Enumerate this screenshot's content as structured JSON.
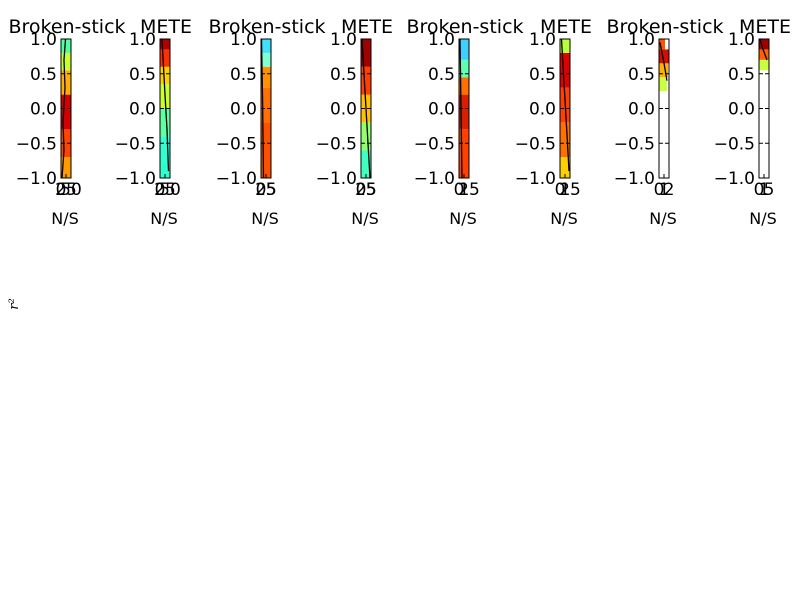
{
  "figure": {
    "ylabel": "r²"
  },
  "chart_data": [
    {
      "type": "heatmap",
      "title": "Broken-stick",
      "xlabel": "N/S",
      "ylim": [
        -1.0,
        1.0
      ],
      "yticks": [
        "1.0",
        "0.5",
        "0.0",
        "−0.5",
        "−1.0"
      ],
      "xticks": [
        "0",
        "25",
        "50"
      ],
      "bands": [
        {
          "y0": -1.0,
          "y1": -0.7,
          "color": "#ff9a00"
        },
        {
          "y0": -0.7,
          "y1": -0.3,
          "color": "#ff4400"
        },
        {
          "y0": -0.3,
          "y1": 0.2,
          "color": "#d40000"
        },
        {
          "y0": 0.2,
          "y1": 0.55,
          "color": "#ffb000"
        },
        {
          "y0": 0.55,
          "y1": 0.8,
          "color": "#c8ff30"
        },
        {
          "y0": 0.8,
          "y1": 1.0,
          "color": "#50ffa0"
        }
      ],
      "trace": [
        [
          0.1,
          -1.0
        ],
        [
          0.3,
          -0.6
        ],
        [
          0.2,
          -0.2
        ],
        [
          0.4,
          0.3
        ],
        [
          0.3,
          0.7
        ],
        [
          0.45,
          1.0
        ]
      ]
    },
    {
      "type": "heatmap",
      "title": "METE",
      "xlabel": "N/S",
      "ylim": [
        -1.0,
        1.0
      ],
      "yticks": [
        "1.0",
        "0.5",
        "0.0",
        "−0.5",
        "−1.0"
      ],
      "xticks": [
        "0",
        "25",
        "50"
      ],
      "bands": [
        {
          "y0": -1.0,
          "y1": -0.4,
          "color": "#30ffd0"
        },
        {
          "y0": -0.4,
          "y1": 0.0,
          "color": "#60ffa0"
        },
        {
          "y0": 0.0,
          "y1": 0.35,
          "color": "#c8ff30"
        },
        {
          "y0": 0.35,
          "y1": 0.6,
          "color": "#ffd000"
        },
        {
          "y0": 0.6,
          "y1": 0.85,
          "color": "#ff3000"
        },
        {
          "y0": 0.85,
          "y1": 1.0,
          "color": "#b00000"
        }
      ],
      "trace": [
        [
          0.2,
          1.0
        ],
        [
          0.35,
          0.6
        ],
        [
          0.5,
          0.2
        ],
        [
          0.7,
          -0.3
        ],
        [
          0.85,
          -0.9
        ]
      ]
    },
    {
      "type": "heatmap",
      "title": "Broken-stick",
      "xlabel": "N/S",
      "ylim": [
        -1.0,
        1.0
      ],
      "yticks": [
        "1.0",
        "0.5",
        "0.0",
        "−0.5",
        "−1.0"
      ],
      "xticks": [
        "0",
        "25",
        "5"
      ],
      "bands": [
        {
          "y0": -1.0,
          "y1": -0.2,
          "color": "#ff5000"
        },
        {
          "y0": -0.2,
          "y1": 0.3,
          "color": "#ff7000"
        },
        {
          "y0": 0.3,
          "y1": 0.6,
          "color": "#ff9000"
        },
        {
          "y0": 0.6,
          "y1": 0.8,
          "color": "#80ffd0"
        },
        {
          "y0": 0.8,
          "y1": 1.0,
          "color": "#40e0ff"
        }
      ],
      "trace": [
        [
          0.05,
          1.0
        ],
        [
          0.1,
          0.6
        ],
        [
          0.15,
          0.2
        ],
        [
          0.2,
          -0.4
        ],
        [
          0.25,
          -1.0
        ]
      ]
    },
    {
      "type": "heatmap",
      "title": "METE",
      "xlabel": "N/S",
      "ylim": [
        -1.0,
        1.0
      ],
      "yticks": [
        "1.0",
        "0.5",
        "0.0",
        "−0.5",
        "−1.0"
      ],
      "xticks": [
        "0",
        "25",
        "5"
      ],
      "bands": [
        {
          "y0": -1.0,
          "y1": -0.6,
          "color": "#40ffc0"
        },
        {
          "y0": -0.6,
          "y1": -0.2,
          "color": "#90ff70"
        },
        {
          "y0": -0.2,
          "y1": 0.2,
          "color": "#ffc000"
        },
        {
          "y0": 0.2,
          "y1": 0.6,
          "color": "#ff4000"
        },
        {
          "y0": 0.6,
          "y1": 1.0,
          "color": "#a00000"
        }
      ],
      "trace": [
        [
          0.1,
          1.0
        ],
        [
          0.3,
          0.5
        ],
        [
          0.5,
          0.0
        ],
        [
          0.7,
          -0.5
        ],
        [
          0.9,
          -1.0
        ]
      ]
    },
    {
      "type": "heatmap",
      "title": "Broken-stick",
      "xlabel": "N/S",
      "ylim": [
        -1.0,
        1.0
      ],
      "yticks": [
        "1.0",
        "0.5",
        "0.0",
        "−0.5",
        "−1.0"
      ],
      "xticks": [
        "0",
        "1",
        "25"
      ],
      "bands": [
        {
          "y0": -1.0,
          "y1": -0.3,
          "color": "#ff4000"
        },
        {
          "y0": -0.3,
          "y1": 0.2,
          "color": "#d82000"
        },
        {
          "y0": 0.2,
          "y1": 0.45,
          "color": "#ff7000"
        },
        {
          "y0": 0.45,
          "y1": 0.7,
          "color": "#60ffb0"
        },
        {
          "y0": 0.7,
          "y1": 1.0,
          "color": "#40d0ff"
        }
      ],
      "trace": [
        [
          0.1,
          1.0
        ],
        [
          0.15,
          0.5
        ],
        [
          0.2,
          0.0
        ],
        [
          0.25,
          -0.5
        ],
        [
          0.3,
          -1.0
        ]
      ]
    },
    {
      "type": "heatmap",
      "title": "METE",
      "xlabel": "N/S",
      "ylim": [
        -1.0,
        1.0
      ],
      "yticks": [
        "1.0",
        "0.5",
        "0.0",
        "−0.5",
        "−1.0"
      ],
      "xticks": [
        "0",
        "1",
        "25"
      ],
      "bands": [
        {
          "y0": -1.0,
          "y1": -0.7,
          "color": "#ffd000"
        },
        {
          "y0": -0.7,
          "y1": -0.2,
          "color": "#ff7000"
        },
        {
          "y0": -0.2,
          "y1": 0.3,
          "color": "#ff4000"
        },
        {
          "y0": 0.3,
          "y1": 0.8,
          "color": "#e00000"
        },
        {
          "y0": 0.8,
          "y1": 1.0,
          "color": "#b8ff40"
        }
      ],
      "trace": [
        [
          0.15,
          1.0
        ],
        [
          0.35,
          0.5
        ],
        [
          0.55,
          0.0
        ],
        [
          0.75,
          -0.5
        ],
        [
          0.9,
          -0.9
        ]
      ]
    },
    {
      "type": "heatmap",
      "title": "Broken-stick",
      "xlabel": "N/S",
      "ylim": [
        -1.0,
        1.0
      ],
      "yticks": [
        "1.0",
        "0.5",
        "0.0",
        "−0.5",
        "−1.0"
      ],
      "xticks": [
        "0",
        "1",
        "2"
      ],
      "bands": [
        {
          "y0": 0.25,
          "y1": 0.45,
          "color": "#c8ff40",
          "x1": 0.8
        },
        {
          "y0": 0.45,
          "y1": 0.65,
          "color": "#ffb000",
          "x1": 0.9
        },
        {
          "y0": 0.65,
          "y1": 0.85,
          "color": "#d01000",
          "x1": 0.95
        },
        {
          "y0": 0.85,
          "y1": 1.0,
          "color": "#ff5000",
          "x1": 0.6
        }
      ],
      "trace": [
        [
          0.1,
          0.95
        ],
        [
          0.3,
          0.8
        ],
        [
          0.5,
          0.65
        ],
        [
          0.8,
          0.4
        ]
      ]
    },
    {
      "type": "heatmap",
      "title": "METE",
      "xlabel": "N/S",
      "ylim": [
        -1.0,
        1.0
      ],
      "yticks": [
        "1.0",
        "0.5",
        "0.0",
        "−0.5",
        "−1.0"
      ],
      "xticks": [
        "0",
        "1",
        "5"
      ],
      "bands": [
        {
          "y0": 0.55,
          "y1": 0.7,
          "color": "#c8ff40",
          "x1": 1.0
        },
        {
          "y0": 0.7,
          "y1": 0.85,
          "color": "#ff6000",
          "x1": 1.0
        },
        {
          "y0": 0.85,
          "y1": 1.0,
          "color": "#a00000",
          "x1": 1.0
        }
      ],
      "trace": [
        [
          0.1,
          1.0
        ],
        [
          0.4,
          0.85
        ],
        [
          0.8,
          0.7
        ]
      ]
    }
  ]
}
